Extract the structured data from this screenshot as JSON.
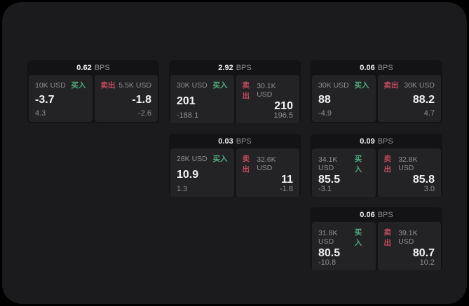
{
  "page": {
    "background": "#000000",
    "surface": "#1b1b1d"
  },
  "colors": {
    "buy": "#4fae7e",
    "sell": "#c14a5e",
    "card_bg": "#131315",
    "panel_bg": "#232326",
    "muted": "#8f8f93",
    "text": "#f2f2f2"
  },
  "labels": {
    "bps_unit": "BPS",
    "buy": "买入",
    "sell": "卖出"
  },
  "cards": [
    {
      "row": 1,
      "col": 1,
      "bps": "0.62",
      "buy": {
        "amount": "10K USD",
        "price": "-3.7",
        "sub": "4.3"
      },
      "sell": {
        "amount": "5.5K USD",
        "price": "-1.8",
        "sub": "-2.6"
      }
    },
    {
      "row": 1,
      "col": 2,
      "bps": "2.92",
      "buy": {
        "amount": "30K USD",
        "price": "201",
        "sub": "-188.1"
      },
      "sell": {
        "amount": "30.1K USD",
        "price": "210",
        "sub": "196.5"
      }
    },
    {
      "row": 1,
      "col": 3,
      "bps": "0.06",
      "buy": {
        "amount": "30K USD",
        "price": "88",
        "sub": "-4.9"
      },
      "sell": {
        "amount": "30K USD",
        "price": "88.2",
        "sub": "4.7"
      }
    },
    {
      "row": 2,
      "col": 2,
      "bps": "0.03",
      "buy": {
        "amount": "28K USD",
        "price": "10.9",
        "sub": "1.3"
      },
      "sell": {
        "amount": "32.6K USD",
        "price": "11",
        "sub": "-1.8"
      }
    },
    {
      "row": 2,
      "col": 3,
      "bps": "0.09",
      "buy": {
        "amount": "34.1K USD",
        "price": "85.5",
        "sub": "-3.1"
      },
      "sell": {
        "amount": "32.8K USD",
        "price": "85.8",
        "sub": "3.0"
      }
    },
    {
      "row": 3,
      "col": 3,
      "bps": "0.06",
      "buy": {
        "amount": "31.8K USD",
        "price": "80.5",
        "sub": "-10.8"
      },
      "sell": {
        "amount": "39.1K USD",
        "price": "80.7",
        "sub": "10.2"
      }
    }
  ]
}
